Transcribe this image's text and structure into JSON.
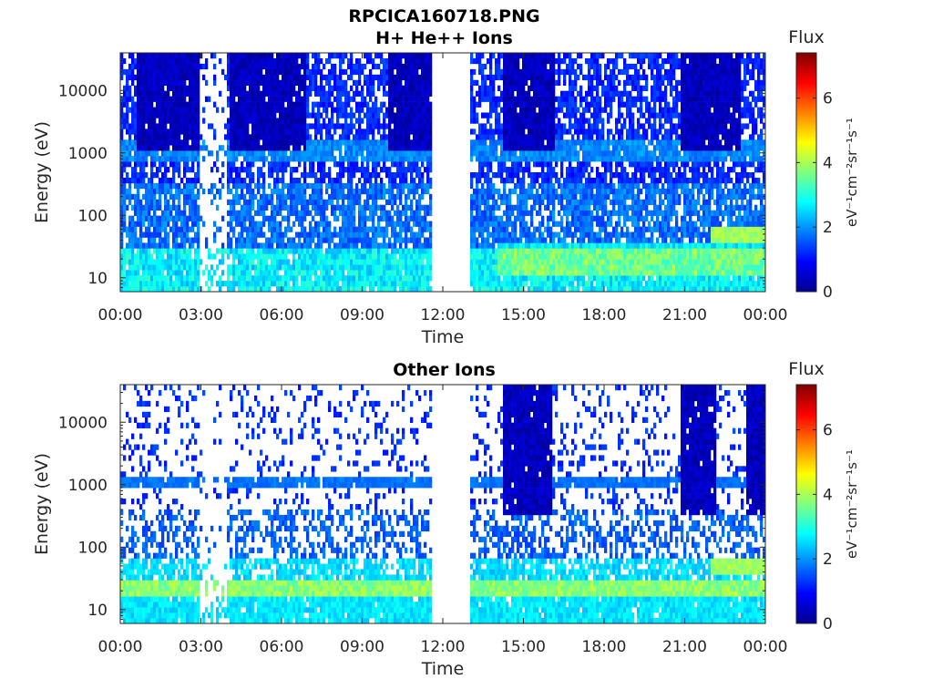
{
  "figure": {
    "title_line1": "RPCICA160718.PNG",
    "title_line2": "H+ He++ Ions"
  },
  "chart_data": [
    {
      "type": "heatmap",
      "title": "H+ He++ Ions",
      "xlabel": "Time",
      "ylabel": "Energy (eV)",
      "xticks": [
        "00:00",
        "03:00",
        "06:00",
        "09:00",
        "12:00",
        "15:00",
        "18:00",
        "21:00",
        "00:00"
      ],
      "xlim_hours": [
        0,
        24
      ],
      "yscale": "log",
      "ylim": [
        6,
        40000
      ],
      "yticks": [
        10,
        100,
        1000,
        10000
      ],
      "ytick_labels": [
        "10",
        "100",
        "1000",
        "10000"
      ],
      "colorbar": {
        "label": "Flux",
        "unit": "eV⁻¹cm⁻²sr⁻¹s⁻¹",
        "range": [
          0,
          7.4
        ],
        "ticks": [
          0,
          2,
          4,
          6
        ],
        "tick_labels": [
          "0",
          "2",
          "4",
          "6"
        ],
        "colormap": "jet"
      },
      "data_gaps_hours": [
        [
          11.6,
          13.0
        ]
      ],
      "features": {
        "high_energy_dark_bands_hours": [
          [
            0.6,
            3.0
          ],
          [
            4.1,
            6.9
          ],
          [
            10.0,
            11.6
          ],
          [
            14.2,
            16.2
          ],
          [
            20.8,
            23.1
          ]
        ],
        "low_flux_band_hours": [
          3.0,
          4.0
        ],
        "line_at_energy_eV": 1100,
        "low_energy_enhancement_hours": [
          14.0,
          24.0
        ],
        "late_high_flux_patch": {
          "hours": [
            22.0,
            24.0
          ],
          "energy_eV": [
            40,
            70
          ]
        }
      }
    },
    {
      "type": "heatmap",
      "title": "Other Ions",
      "xlabel": "Time",
      "ylabel": "Energy (eV)",
      "xticks": [
        "00:00",
        "03:00",
        "06:00",
        "09:00",
        "12:00",
        "15:00",
        "18:00",
        "21:00",
        "00:00"
      ],
      "xlim_hours": [
        0,
        24
      ],
      "yscale": "log",
      "ylim": [
        6,
        40000
      ],
      "yticks": [
        10,
        100,
        1000,
        10000
      ],
      "ytick_labels": [
        "10",
        "100",
        "1000",
        "10000"
      ],
      "colorbar": {
        "label": "Flux",
        "unit": "eV⁻¹cm⁻²sr⁻¹s⁻¹",
        "range": [
          0,
          7.4
        ],
        "ticks": [
          0,
          2,
          4,
          6
        ],
        "tick_labels": [
          "0",
          "2",
          "4",
          "6"
        ],
        "colormap": "jet"
      },
      "data_gaps_hours": [
        [
          11.6,
          13.0
        ]
      ],
      "features": {
        "high_energy_dark_bands_hours": [
          [
            14.2,
            16.1
          ],
          [
            20.8,
            22.2
          ],
          [
            23.3,
            24.0
          ]
        ],
        "low_flux_band_hours": [
          3.0,
          4.0
        ],
        "line_at_energy_eV": 1100,
        "low_energy_band_eV": [
          15,
          30
        ],
        "late_high_flux_patch": {
          "hours": [
            22.0,
            24.0
          ],
          "energy_eV": [
            40,
            70
          ]
        }
      }
    }
  ]
}
